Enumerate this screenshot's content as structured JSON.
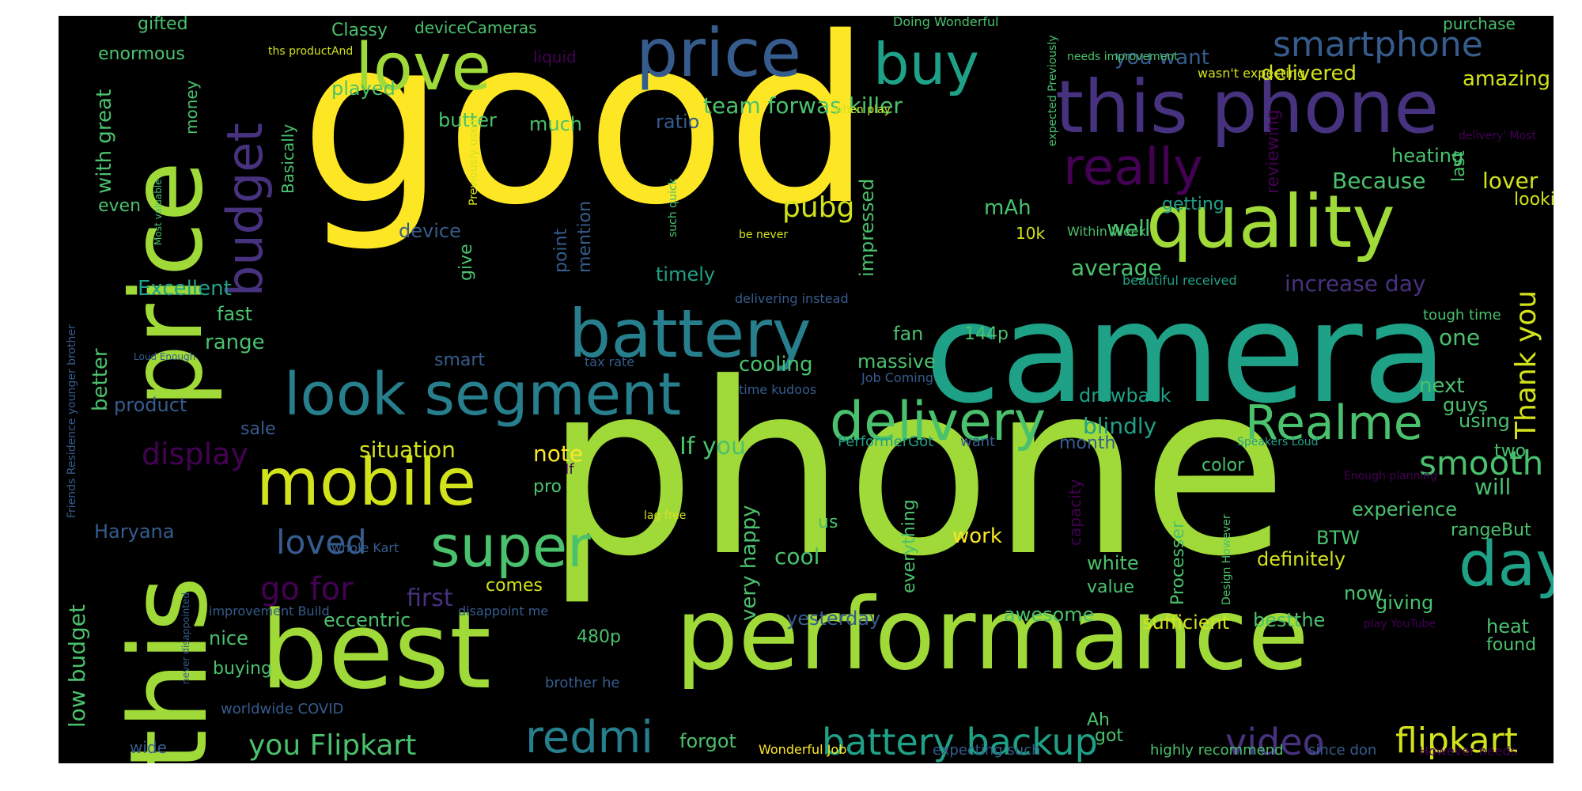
{
  "palette": {
    "background": "#000000",
    "yellow": "#fde725",
    "lime": "#a0da39",
    "green": "#4ac16d",
    "teal": "#1fa187",
    "cyan": "#277f8e",
    "blue": "#365c8d",
    "indigo": "#46327e",
    "purple": "#440154"
  },
  "words": [
    {
      "id": "good",
      "text": "good"
    },
    {
      "id": "phone",
      "text": "phone"
    },
    {
      "id": "camera",
      "text": "camera"
    },
    {
      "id": "performance",
      "text": "performance"
    },
    {
      "id": "best",
      "text": "best"
    },
    {
      "id": "this-v",
      "text": "this"
    },
    {
      "id": "price-v",
      "text": "price"
    },
    {
      "id": "this-phone",
      "text": "this phone"
    },
    {
      "id": "quality",
      "text": "quality"
    },
    {
      "id": "price",
      "text": "price"
    },
    {
      "id": "love",
      "text": "love"
    },
    {
      "id": "buy",
      "text": "buy"
    },
    {
      "id": "really",
      "text": "really"
    },
    {
      "id": "budget-v",
      "text": "budget"
    },
    {
      "id": "battery",
      "text": "battery"
    },
    {
      "id": "look-segment",
      "text": "look segment"
    },
    {
      "id": "mobile",
      "text": "mobile"
    },
    {
      "id": "super",
      "text": "super"
    },
    {
      "id": "delivery",
      "text": "delivery"
    },
    {
      "id": "realme",
      "text": "Realme"
    },
    {
      "id": "day",
      "text": "day"
    },
    {
      "id": "redmi",
      "text": "redmi"
    },
    {
      "id": "battery-backup",
      "text": "battery backup"
    },
    {
      "id": "video",
      "text": "video"
    },
    {
      "id": "flipkart",
      "text": "flipkart"
    },
    {
      "id": "smartphone",
      "text": "smartphone"
    },
    {
      "id": "smooth",
      "text": "smooth"
    },
    {
      "id": "thank-you-v",
      "text": "Thank you"
    },
    {
      "id": "loved",
      "text": "loved"
    },
    {
      "id": "go-for",
      "text": "go for"
    },
    {
      "id": "display",
      "text": "display"
    },
    {
      "id": "you-flipkart",
      "text": "you Flipkart"
    },
    {
      "id": "pubg",
      "text": "pubg"
    },
    {
      "id": "situation",
      "text": "situation"
    },
    {
      "id": "note",
      "text": "note"
    },
    {
      "id": "if-you",
      "text": "If you"
    },
    {
      "id": "you-want",
      "text": "you want"
    },
    {
      "id": "delivered",
      "text": "delivered"
    },
    {
      "id": "amazing",
      "text": "amazing"
    },
    {
      "id": "team-forwas-killer",
      "text": "team forwas killer"
    },
    {
      "id": "because",
      "text": "Because"
    },
    {
      "id": "lover",
      "text": "lover"
    },
    {
      "id": "looking",
      "text": "looking"
    },
    {
      "id": "average",
      "text": "average"
    },
    {
      "id": "increase-day",
      "text": "increase day"
    },
    {
      "id": "well",
      "text": "well"
    },
    {
      "id": "mah",
      "text": "mAh"
    },
    {
      "id": "10k",
      "text": "10k"
    },
    {
      "id": "heating",
      "text": "heating"
    },
    {
      "id": "low-budget-v",
      "text": "low budget"
    },
    {
      "id": "with-great-v",
      "text": "with great"
    },
    {
      "id": "excellent",
      "text": "Excellent"
    },
    {
      "id": "range",
      "text": "range"
    },
    {
      "id": "fast",
      "text": "fast"
    },
    {
      "id": "better-v",
      "text": "better"
    },
    {
      "id": "product",
      "text": "product"
    },
    {
      "id": "haryana",
      "text": "Haryana"
    },
    {
      "id": "first",
      "text": "first"
    },
    {
      "id": "eccentric",
      "text": "eccentric"
    },
    {
      "id": "nice",
      "text": "nice"
    },
    {
      "id": "buying",
      "text": "buying"
    },
    {
      "id": "cool",
      "text": "cool"
    },
    {
      "id": "work",
      "text": "work"
    },
    {
      "id": "comes",
      "text": "comes"
    },
    {
      "id": "480p",
      "text": "480p"
    },
    {
      "id": "yesterday",
      "text": "yesterday"
    },
    {
      "id": "awesome",
      "text": "awesome"
    },
    {
      "id": "value",
      "text": "value"
    },
    {
      "id": "white",
      "text": "white"
    },
    {
      "id": "definitely",
      "text": "definitely"
    },
    {
      "id": "bestthe",
      "text": "bestthe"
    },
    {
      "id": "sufficient",
      "text": "sufficient"
    },
    {
      "id": "giving",
      "text": "giving"
    },
    {
      "id": "now",
      "text": "now"
    },
    {
      "id": "heat",
      "text": "heat"
    },
    {
      "id": "found",
      "text": "found"
    },
    {
      "id": "experience",
      "text": "experience"
    },
    {
      "id": "will",
      "text": "will"
    },
    {
      "id": "rangebut",
      "text": "rangeBut"
    },
    {
      "id": "btw",
      "text": "BTW"
    },
    {
      "id": "color",
      "text": "color"
    },
    {
      "id": "month",
      "text": "month"
    },
    {
      "id": "blindly",
      "text": "blindly"
    },
    {
      "id": "drawback",
      "text": "drawback"
    },
    {
      "id": "next",
      "text": "next"
    },
    {
      "id": "guys",
      "text": "guys"
    },
    {
      "id": "using",
      "text": "using"
    },
    {
      "id": "one",
      "text": "one"
    },
    {
      "id": "two",
      "text": "two"
    },
    {
      "id": "cooling",
      "text": "cooling"
    },
    {
      "id": "massive",
      "text": "massive"
    },
    {
      "id": "smart",
      "text": "smart"
    },
    {
      "id": "sale",
      "text": "sale"
    },
    {
      "id": "144p",
      "text": "144p"
    },
    {
      "id": "fan",
      "text": "fan"
    },
    {
      "id": "timely",
      "text": "timely"
    },
    {
      "id": "device",
      "text": "device"
    },
    {
      "id": "ratio",
      "text": "ratio"
    },
    {
      "id": "played",
      "text": "played"
    },
    {
      "id": "butter",
      "text": "butter"
    },
    {
      "id": "much",
      "text": "much"
    },
    {
      "id": "classy",
      "text": "Classy"
    },
    {
      "id": "gifted",
      "text": "gifted"
    },
    {
      "id": "enormous",
      "text": "enormous"
    },
    {
      "id": "devicecameras",
      "text": "deviceCameras"
    },
    {
      "id": "liquid",
      "text": "liquid"
    },
    {
      "id": "purchase",
      "text": "purchase"
    },
    {
      "id": "doing-wonderful",
      "text": "Doing Wonderful"
    },
    {
      "id": "ths-productand",
      "text": "ths productAnd"
    },
    {
      "id": "wasnt-expecting",
      "text": "wasn't expecting"
    },
    {
      "id": "needs-improvement",
      "text": "needs improvement"
    },
    {
      "id": "even",
      "text": "even"
    },
    {
      "id": "money-v",
      "text": "money"
    },
    {
      "id": "basically-v",
      "text": "Basically"
    },
    {
      "id": "give-v",
      "text": "give"
    },
    {
      "id": "impressed-v",
      "text": "impressed"
    },
    {
      "id": "point-v",
      "text": "point"
    },
    {
      "id": "mention-v",
      "text": "mention"
    },
    {
      "id": "reviewing-v",
      "text": "reviewing"
    },
    {
      "id": "last-v",
      "text": "last"
    },
    {
      "id": "getting",
      "text": "getting"
    },
    {
      "id": "within-week",
      "text": "Within Week"
    },
    {
      "id": "beautiful-received",
      "text": "beautiful received"
    },
    {
      "id": "tough-time",
      "text": "tough time"
    },
    {
      "id": "delivering-instead",
      "text": "delivering instead"
    },
    {
      "id": "time-kudoos",
      "text": "time kudoos"
    },
    {
      "id": "job-coming",
      "text": "Job Coming"
    },
    {
      "id": "tax-rate",
      "text": "tax rate"
    },
    {
      "id": "performergot",
      "text": "PerformerGot"
    },
    {
      "id": "want",
      "text": "want"
    },
    {
      "id": "if",
      "text": "If"
    },
    {
      "id": "pro",
      "text": "pro"
    },
    {
      "id": "lag-free",
      "text": "lag free"
    },
    {
      "id": "us",
      "text": "us"
    },
    {
      "id": "very-happy-v",
      "text": "very happy"
    },
    {
      "id": "everything-v",
      "text": "everything"
    },
    {
      "id": "capacity-v",
      "text": "capacity"
    },
    {
      "id": "processer-v",
      "text": "Processer"
    },
    {
      "id": "whole-kart",
      "text": "whole Kart"
    },
    {
      "id": "improvement-build",
      "text": "improvement Build"
    },
    {
      "id": "disappoint-me",
      "text": "disappoint me"
    },
    {
      "id": "brother-he",
      "text": "brother he"
    },
    {
      "id": "worldwide-covid",
      "text": "worldwide COVID"
    },
    {
      "id": "wide",
      "text": "wide"
    },
    {
      "id": "forgot",
      "text": "forgot"
    },
    {
      "id": "wonderful-job",
      "text": "Wonderful Job"
    },
    {
      "id": "expecting-such",
      "text": "expecting such"
    },
    {
      "id": "ah",
      "text": "Ah"
    },
    {
      "id": "got",
      "text": "got"
    },
    {
      "id": "highly-recommend",
      "text": "highly recommend"
    },
    {
      "id": "since-don",
      "text": "since don"
    },
    {
      "id": "however-needs",
      "text": "However needs"
    },
    {
      "id": "speakers-loud",
      "text": "Speakers Loud"
    },
    {
      "id": "enough-planning",
      "text": "Enough planning"
    },
    {
      "id": "play-youtube",
      "text": "play YouTube"
    },
    {
      "id": "loud-enough",
      "text": "Loud Enough"
    },
    {
      "id": "be-never",
      "text": "be never"
    },
    {
      "id": "when-play",
      "text": "when play"
    },
    {
      "id": "delivery-most",
      "text": "delivery' Most"
    },
    {
      "id": "expected-previously-v",
      "text": "expected Previously"
    },
    {
      "id": "friends-residence-v",
      "text": "Friends Residence younger brother"
    },
    {
      "id": "most-valuable-v",
      "text": "Most valuable"
    },
    {
      "id": "never-disappointed-v",
      "text": "never disappointed"
    },
    {
      "id": "previously-used-v",
      "text": "Previously used"
    },
    {
      "id": "such-quick-v",
      "text": "such quick"
    },
    {
      "id": "design-however-v",
      "text": "Design However"
    }
  ]
}
